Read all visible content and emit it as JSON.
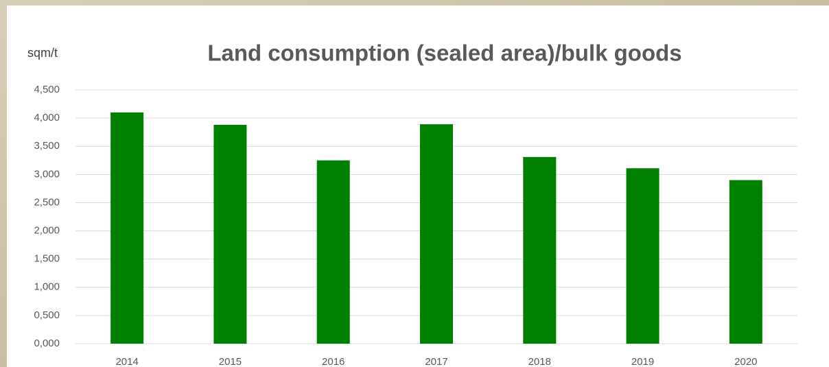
{
  "chart_data": {
    "type": "bar",
    "title": "Land consumption (sealed area)/bulk goods",
    "y_label": "sqm/t",
    "categories": [
      "2014",
      "2015",
      "2016",
      "2017",
      "2018",
      "2019",
      "2020"
    ],
    "values": [
      4.1,
      3.88,
      3.25,
      3.89,
      3.31,
      3.11,
      2.9
    ],
    "color": "#008000",
    "ylim": [
      0,
      4.5
    ],
    "yticks": [
      {
        "value": 0,
        "label": "0,000"
      },
      {
        "value": 0.5,
        "label": "0,500"
      },
      {
        "value": 1,
        "label": "1,000"
      },
      {
        "value": 1.5,
        "label": "1,500"
      },
      {
        "value": 2,
        "label": "2,000"
      },
      {
        "value": 2.5,
        "label": "2,500"
      },
      {
        "value": 3,
        "label": "3,000"
      },
      {
        "value": 3.5,
        "label": "3,500"
      },
      {
        "value": 4,
        "label": "4,000"
      },
      {
        "value": 4.5,
        "label": "4,500"
      }
    ],
    "grid": true
  }
}
